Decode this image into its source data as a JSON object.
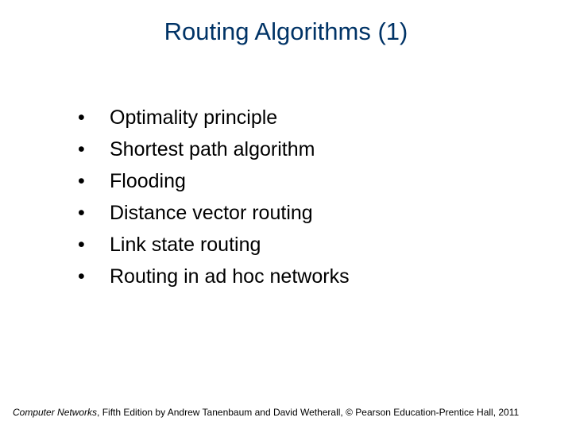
{
  "title": {
    "text": "Routing Algorithms (1)",
    "color": "#003366",
    "fontsize": 31
  },
  "bullets": {
    "items": [
      "Optimality principle",
      "Shortest path algorithm",
      "Flooding",
      "Distance vector routing",
      "Link state routing",
      "Routing in ad hoc networks"
    ],
    "text_color": "#000000",
    "bullet_color": "#000000",
    "fontsize": 25,
    "line_height": 40
  },
  "footer": {
    "prefix_italic": "Computer Networks",
    "rest": ", Fifth Edition by Andrew Tanenbaum and David Wetherall, © Pearson Education-Prentice Hall, 2011",
    "color": "#000000",
    "fontsize": 12
  },
  "background_color": "#ffffff"
}
